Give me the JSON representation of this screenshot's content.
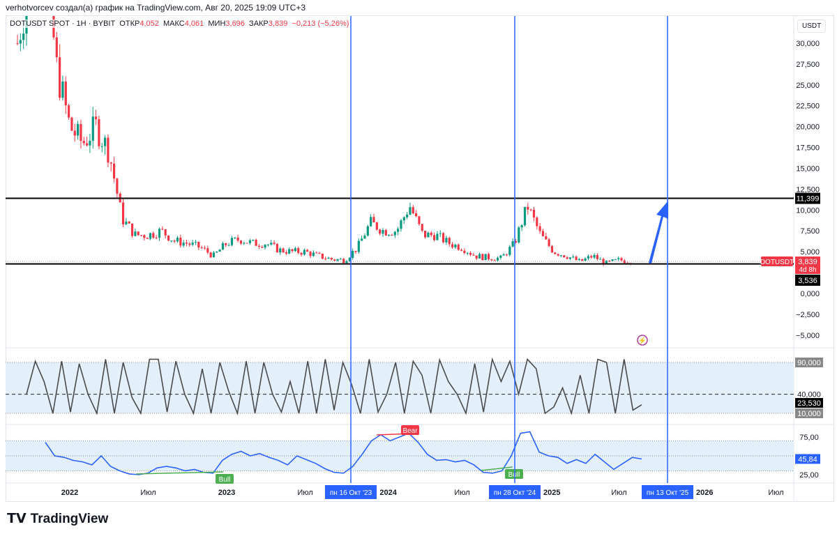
{
  "caption": "verhotvorcev создал(а) график на TradingView.com, Авг 20, 2025 19:09 UTC+3",
  "legend": {
    "symbol": "DOTUSDT SPOT · 1H · BYBIT",
    "open_label": "ОТКР",
    "open": "4,052",
    "high_label": "МАКС",
    "high": "4,061",
    "low_label": "МИН",
    "low": "3,696",
    "close_label": "ЗАКР",
    "close": "3,839",
    "change": "−0,213 (−5,26%)"
  },
  "currency_button": "USDT",
  "logo": "TradingView",
  "colors": {
    "up": "#089981",
    "down": "#f23645",
    "vline": "#2962ff",
    "osc": "#4a4a4a",
    "rsi": "#2962ff",
    "band": "#e3f0fc"
  },
  "chart_data": [
    {
      "type": "candlestick",
      "title": "DOTUSDT SPOT · 1H · BYBIT",
      "x_tick_labels": [
        "2022",
        "Июл",
        "2023",
        "Июл",
        "2024",
        "Июл",
        "2025",
        "Июл",
        "2026",
        "Июл"
      ],
      "y_tick_labels": [
        "30,000",
        "27,500",
        "25,000",
        "22,500",
        "20,000",
        "17,500",
        "15,000",
        "12,500",
        "10,000",
        "7,500",
        "5,000",
        "0,000",
        "−2,500",
        "−5,000"
      ],
      "ylim": [
        -6,
        33
      ],
      "monthly_close": {
        "start": "2021-09",
        "values": [
          30,
          38,
          42,
          27,
          20,
          18,
          20,
          17,
          9,
          7,
          7,
          7.5,
          6.3,
          6,
          5.5,
          4.5,
          6,
          6.5,
          6,
          6,
          5.2,
          5,
          5,
          4.5,
          4.1,
          4,
          5.5,
          8.5,
          7.5,
          7.5,
          10.5,
          7,
          7,
          6,
          5.5,
          4.5,
          4.3,
          4.2,
          6,
          10.5,
          7,
          5,
          4.5,
          3.8,
          4.5,
          3.6,
          4,
          3.84
        ]
      },
      "horizontal_lines": [
        {
          "value": "11,399"
        },
        {
          "value": "3,536"
        }
      ],
      "last_price": {
        "symbol": "DOTUSDT",
        "value": "3,839",
        "countdown": "4d 8h"
      },
      "vertical_lines": [
        {
          "date": "пн 16 Окт '23"
        },
        {
          "date": "пн 28 Окт '24"
        },
        {
          "date": "пн 13 Окт '25"
        }
      ]
    },
    {
      "type": "line",
      "name": "oscillator",
      "y_tick_labels": [
        "90,000",
        "40,000",
        "10,000"
      ],
      "levels": [
        90,
        40,
        10
      ],
      "last": "23,530",
      "values": [
        40,
        92,
        60,
        10,
        92,
        12,
        88,
        40,
        10,
        95,
        10,
        90,
        35,
        10,
        95,
        95,
        12,
        92,
        40,
        10,
        80,
        10,
        90,
        45,
        10,
        92,
        10,
        90,
        40,
        12,
        60,
        10,
        92,
        10,
        95,
        15,
        90,
        55,
        10,
        95,
        12,
        40,
        90,
        10,
        92,
        70,
        10,
        94,
        60,
        40,
        10,
        88,
        12,
        95,
        60,
        92,
        40,
        95,
        80,
        10,
        20,
        50,
        10,
        70,
        10,
        95,
        90,
        10,
        95,
        15,
        23.53
      ]
    },
    {
      "type": "line",
      "name": "rsi",
      "y_tick_labels": [
        "75,00",
        "50,00",
        "25,00"
      ],
      "levels": [
        70,
        50,
        30
      ],
      "last": "45,84",
      "values": [
        68,
        50,
        48,
        44,
        42,
        38,
        50,
        36,
        30,
        26,
        25,
        27,
        34,
        36,
        34,
        30,
        32,
        28,
        27,
        44,
        52,
        56,
        50,
        53,
        48,
        44,
        38,
        50,
        45,
        40,
        33,
        28,
        27,
        36,
        52,
        70,
        78,
        70,
        75,
        80,
        68,
        52,
        44,
        45,
        42,
        44,
        38,
        28,
        27,
        30,
        50,
        80,
        82,
        55,
        50,
        48,
        40,
        45,
        40,
        52,
        42,
        32,
        40,
        48,
        45.84
      ],
      "annotations": [
        {
          "label": "Bull"
        },
        {
          "label": "Bear"
        },
        {
          "label": "Bull"
        }
      ]
    }
  ]
}
